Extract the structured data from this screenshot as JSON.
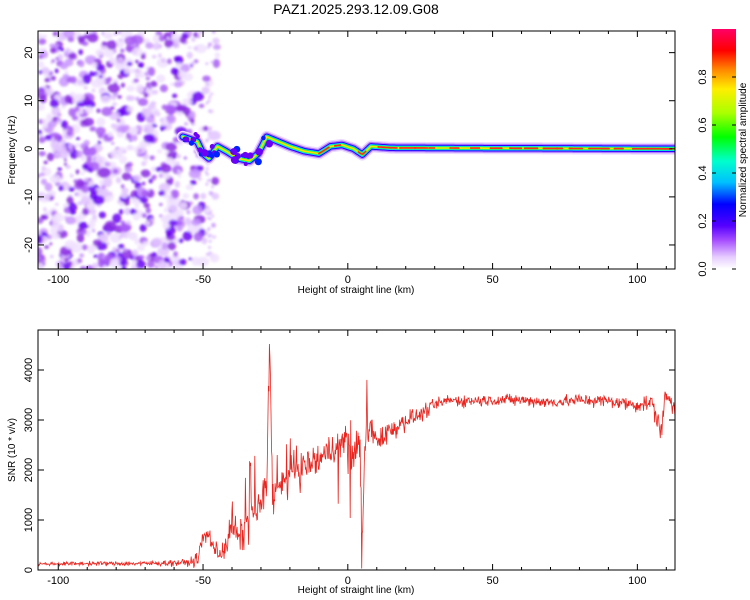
{
  "title": "PAZ1.2025.293.12.09.G08",
  "chart_data": [
    {
      "type": "heatmap",
      "name": "spectrogram",
      "xlabel": "Height of straight line (km)",
      "ylabel": "Frequency (Hz)",
      "xlim": [
        -107,
        113
      ],
      "ylim": [
        -25,
        24.5
      ],
      "xticks": [
        -100,
        -50,
        0,
        50,
        100
      ],
      "yticks": [
        -20,
        -10,
        0,
        10,
        20
      ],
      "colorbar": {
        "label": "Normalized spectral amplitude",
        "range": [
          0,
          1
        ],
        "ticks": [
          "0.0",
          "0.2",
          "0.4",
          "0.6",
          "0.8"
        ],
        "tick_values": [
          0,
          0.2,
          0.4,
          0.6,
          0.8
        ]
      },
      "ridge_track": [
        {
          "x": -57,
          "f": 2.5
        },
        {
          "x": -52,
          "f": 1.5
        },
        {
          "x": -50,
          "f": -1
        },
        {
          "x": -48,
          "f": -2
        },
        {
          "x": -45,
          "f": 0.5
        },
        {
          "x": -42,
          "f": -0.5
        },
        {
          "x": -38,
          "f": -2
        },
        {
          "x": -34,
          "f": -2.5
        },
        {
          "x": -31,
          "f": -1
        },
        {
          "x": -28,
          "f": 2.5
        },
        {
          "x": -24,
          "f": 1.5
        },
        {
          "x": -20,
          "f": 0.5
        },
        {
          "x": -15,
          "f": -0.5
        },
        {
          "x": -10,
          "f": -1
        },
        {
          "x": -6,
          "f": 0.5
        },
        {
          "x": -2,
          "f": 0.8
        },
        {
          "x": 2,
          "f": 0
        },
        {
          "x": 5,
          "f": -1.2
        },
        {
          "x": 8,
          "f": 0.5
        },
        {
          "x": 15,
          "f": 0.2
        },
        {
          "x": 113,
          "f": 0
        }
      ],
      "noise_region": [
        -107,
        -57
      ]
    },
    {
      "type": "line",
      "name": "snr",
      "xlabel": "Height of straight line (km)",
      "ylabel": "SNR (10 * v/v)",
      "xlim": [
        -107,
        113
      ],
      "ylim": [
        0,
        4800
      ],
      "xticks": [
        -100,
        -50,
        0,
        50,
        100
      ],
      "yticks": [
        0,
        1000,
        2000,
        3000,
        4000
      ],
      "color": "#e8251f",
      "series": [
        {
          "name": "SNR",
          "x": [
            -107,
            -90,
            -70,
            -55,
            -52,
            -50,
            -48,
            -45,
            -42,
            -40,
            -37,
            -34,
            -31,
            -28,
            -27,
            -26,
            -24,
            -22,
            -20,
            -17,
            -14,
            -10,
            -6,
            -3,
            0,
            2,
            4,
            5,
            6,
            8,
            10,
            15,
            20,
            25,
            30,
            35,
            40,
            50,
            60,
            70,
            80,
            90,
            100,
            105,
            108,
            110,
            113
          ],
          "values": [
            120,
            130,
            130,
            150,
            200,
            650,
            700,
            300,
            500,
            900,
            600,
            1100,
            1200,
            1700,
            4700,
            1500,
            1600,
            1700,
            1900,
            2000,
            2100,
            2200,
            2400,
            2500,
            2600,
            2200,
            2800,
            500,
            2600,
            2900,
            2600,
            2800,
            3000,
            3100,
            3300,
            3400,
            3380,
            3400,
            3400,
            3350,
            3400,
            3380,
            3300,
            3350,
            2800,
            3500,
            3200
          ],
          "noise_amplitude": [
            30,
            35,
            40,
            60,
            120,
            150,
            150,
            180,
            260,
            300,
            320,
            340,
            320,
            320,
            320,
            320,
            320,
            320,
            320,
            300,
            300,
            300,
            300,
            300,
            300,
            300,
            300,
            300,
            300,
            260,
            240,
            220,
            160,
            130,
            110,
            100,
            100,
            100,
            100,
            100,
            110,
            110,
            120,
            140,
            200,
            220,
            200
          ]
        }
      ]
    }
  ]
}
